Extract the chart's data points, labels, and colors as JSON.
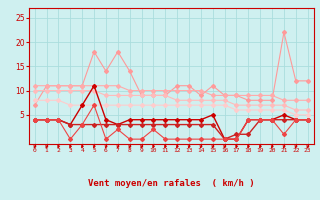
{
  "background_color": "#cff0f0",
  "grid_color": "#aadddd",
  "x_labels": [
    "0",
    "1",
    "2",
    "3",
    "4",
    "5",
    "6",
    "7",
    "8",
    "9",
    "10",
    "11",
    "12",
    "13",
    "14",
    "15",
    "16",
    "17",
    "18",
    "19",
    "20",
    "21",
    "22",
    "23"
  ],
  "xlabel": "Vent moyen/en rafales  ( km/h )",
  "ylim": [
    -1,
    27
  ],
  "yticks": [
    5,
    10,
    15,
    20,
    25
  ],
  "series": [
    {
      "color": "#ff9999",
      "linewidth": 0.8,
      "markersize": 2.0,
      "values": [
        7,
        11,
        11,
        11,
        11,
        18,
        14,
        18,
        14,
        9,
        9,
        9,
        11,
        11,
        9,
        11,
        9,
        9,
        8,
        8,
        8,
        22,
        12,
        12
      ]
    },
    {
      "color": "#ffaaaa",
      "linewidth": 0.8,
      "markersize": 2.0,
      "values": [
        11,
        11,
        11,
        11,
        11,
        11,
        11,
        11,
        10,
        10,
        10,
        10,
        10,
        10,
        10,
        9,
        9,
        9,
        9,
        9,
        9,
        8,
        8,
        8
      ]
    },
    {
      "color": "#ffbbbb",
      "linewidth": 0.8,
      "markersize": 2.0,
      "values": [
        10,
        10,
        10,
        10,
        10,
        10,
        9,
        9,
        9,
        9,
        9,
        9,
        8,
        8,
        8,
        8,
        8,
        7,
        7,
        7,
        7,
        7,
        6,
        6
      ]
    },
    {
      "color": "#ffcccc",
      "linewidth": 0.8,
      "markersize": 2.0,
      "values": [
        8,
        8,
        8,
        7,
        7,
        7,
        7,
        7,
        7,
        7,
        7,
        7,
        7,
        7,
        7,
        7,
        7,
        6,
        6,
        6,
        6,
        6,
        5,
        5
      ]
    },
    {
      "color": "#cc0000",
      "linewidth": 1.0,
      "markersize": 2.0,
      "values": [
        4,
        4,
        4,
        3,
        7,
        11,
        4,
        3,
        4,
        4,
        4,
        4,
        4,
        4,
        4,
        5,
        0,
        0,
        4,
        4,
        4,
        5,
        4,
        4
      ]
    },
    {
      "color": "#cc2222",
      "linewidth": 1.0,
      "markersize": 2.0,
      "values": [
        4,
        4,
        4,
        3,
        3,
        3,
        3,
        3,
        3,
        3,
        3,
        3,
        3,
        3,
        3,
        3,
        0,
        1,
        1,
        4,
        4,
        4,
        4,
        4
      ]
    },
    {
      "color": "#ee4444",
      "linewidth": 0.8,
      "markersize": 2.0,
      "values": [
        4,
        4,
        4,
        0,
        3,
        7,
        0,
        2,
        0,
        0,
        2,
        0,
        0,
        0,
        0,
        0,
        0,
        0,
        4,
        4,
        4,
        1,
        4,
        4
      ]
    }
  ],
  "tick_color": "#cc0000",
  "axis_label_color": "#cc0000",
  "spine_color": "#cc0000"
}
